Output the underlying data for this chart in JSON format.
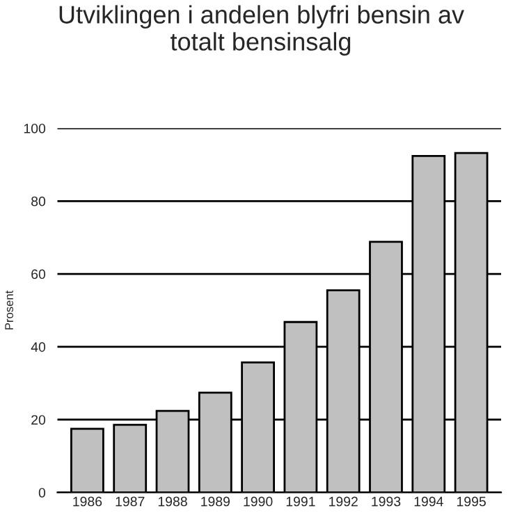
{
  "chart_data": {
    "type": "bar",
    "title": "Utviklingen i andelen blyfri bensin av\ntotalt bensinsalg",
    "ylabel": "Prosent",
    "categories": [
      "1986",
      "1987",
      "1988",
      "1989",
      "1990",
      "1991",
      "1992",
      "1993",
      "1994",
      "1995"
    ],
    "values": [
      17.5,
      18.6,
      22.4,
      27.4,
      35.7,
      46.8,
      55.5,
      68.8,
      92.4,
      93.2
    ],
    "color": "#c0c0c0",
    "ylim": [
      0,
      100
    ],
    "yticks": [
      0,
      20,
      40,
      60,
      80,
      100
    ],
    "grid": "y"
  }
}
